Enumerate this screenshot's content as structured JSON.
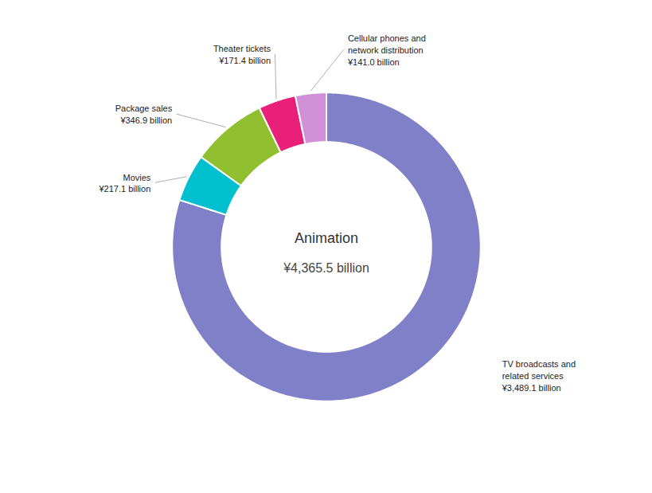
{
  "chart_data": {
    "type": "donut",
    "title": "Animation",
    "subtitle": "¥4,365.5 billion",
    "categories": [
      "TV broadcasts and\nrelated services",
      "Movies",
      "Package sales",
      "Theater tickets",
      "Cellular phones and\nnetwork distribution"
    ],
    "values": [
      3489.1,
      217.1,
      346.9,
      171.4,
      141.0
    ],
    "value_labels": [
      "¥3,489.1 billion",
      "¥217.1 billion",
      "¥346.9 billion",
      "¥171.4 billion",
      "¥141.0 billion"
    ],
    "colors": [
      "#8080C8",
      "#00C0D0",
      "#90C030",
      "#E8207A",
      "#D090D8"
    ],
    "data_labels": true
  }
}
